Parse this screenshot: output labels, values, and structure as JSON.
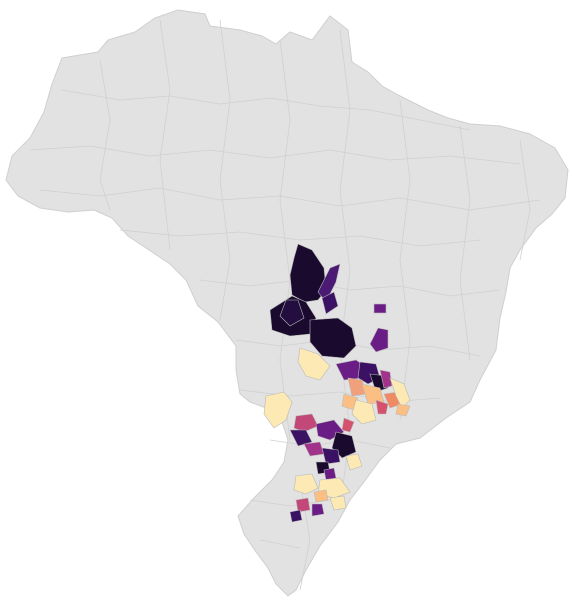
{
  "map": {
    "country": "Brazil",
    "base_color": "#e2e2e2",
    "border_color": "#cfcfcf",
    "colorscale": "magma",
    "colorscale_stops": [
      "#1a0a2e",
      "#3b1164",
      "#6a1d84",
      "#a2338a",
      "#d4526e",
      "#f08a62",
      "#fbbf84",
      "#fde9b3"
    ],
    "highlighted_cluster_colors": {
      "north_cluster": "#1a0a2e",
      "north_secondary": "#4b1a75",
      "east_purple": "#6a1d84",
      "minas_orange": "#f0a07a",
      "light_yellow": "#fde9b3",
      "south_purple": "#3b1164",
      "south_pink": "#c2487a"
    },
    "legend_visible": false,
    "title_visible": false
  }
}
